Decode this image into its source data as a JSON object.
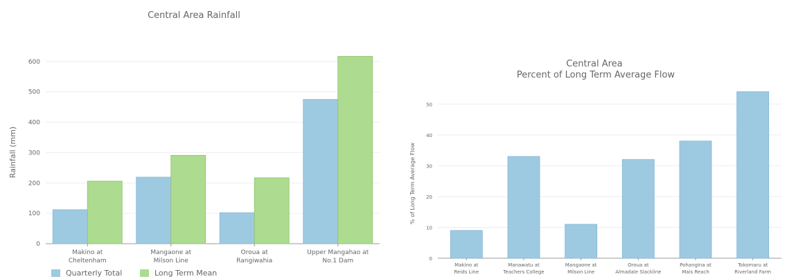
{
  "chart_data": [
    {
      "type": "bar",
      "title": "Central Area Rainfall",
      "ylabel": "Rainfall (mm)",
      "xlabel": "",
      "ylim": [
        0,
        620
      ],
      "yticks": [
        0,
        100,
        200,
        300,
        400,
        500,
        600
      ],
      "grid": true,
      "legend_position": "bottom-left",
      "categories": [
        [
          "Makino at",
          "Cheltenham"
        ],
        [
          "Mangaone at",
          "Milson Line"
        ],
        [
          "Oroua at",
          "Rangiwahia"
        ],
        [
          "Upper Mangahao at",
          "No.1 Dam"
        ]
      ],
      "series": [
        {
          "name": "Quarterly Total",
          "color": "#9ecae1",
          "values": [
            112,
            219,
            102,
            475
          ]
        },
        {
          "name": "Long Term Mean",
          "color": "#addb8f",
          "values": [
            206,
            291,
            217,
            617
          ]
        }
      ]
    },
    {
      "type": "bar",
      "title": [
        "Central Area",
        "Percent of Long Term Average Flow"
      ],
      "ylabel": "% of Long Term Average Flow",
      "xlabel": "",
      "ylim": [
        0,
        55
      ],
      "yticks": [
        0,
        10,
        20,
        30,
        40,
        50
      ],
      "grid": true,
      "categories": [
        [
          "Makino at",
          "Reids Line"
        ],
        [
          "Manawatu at",
          "Teachers College"
        ],
        [
          "Mangaone at",
          "Milson Line"
        ],
        [
          "Oroua at",
          "Almadale Slackline"
        ],
        [
          "Pohangina at",
          "Mais Reach"
        ],
        [
          "Tokomaru at",
          "Riverland Farm"
        ]
      ],
      "series": [
        {
          "color": "#9ecae1",
          "values": [
            9,
            33,
            11,
            32,
            38,
            54
          ]
        }
      ]
    }
  ]
}
